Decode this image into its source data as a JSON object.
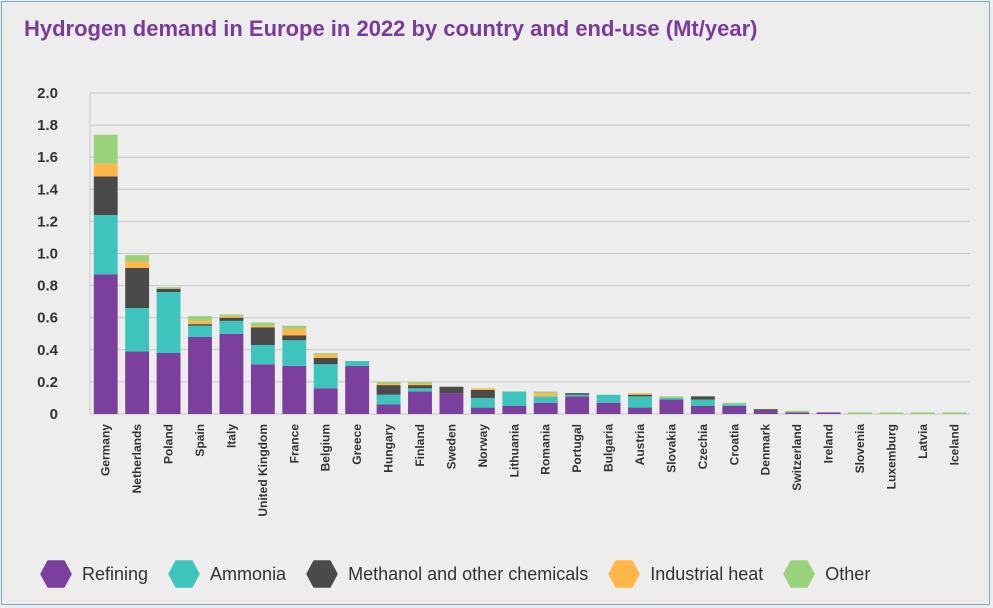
{
  "chart_data": {
    "type": "bar",
    "stacked": true,
    "title": "Hydrogen demand in Europe in 2022 by country and end-use (Mt/year)",
    "xlabel": "",
    "ylabel": "",
    "ylim": [
      0,
      2.0
    ],
    "yticks": [
      0,
      0.2,
      0.4,
      0.6,
      0.8,
      1.0,
      1.2,
      1.4,
      1.6,
      1.8,
      2.0
    ],
    "ytick_labels": [
      "0",
      "0.2",
      "0.4",
      "0.6",
      "0.8",
      "1.0",
      "1.2",
      "1.4",
      "1.6",
      "1.8",
      "2.0"
    ],
    "grid": true,
    "legend_position": "bottom",
    "categories": [
      "Germany",
      "Netherlands",
      "Poland",
      "Spain",
      "Italy",
      "United Kingdom",
      "France",
      "Belgium",
      "Greece",
      "Hungary",
      "Finland",
      "Sweden",
      "Norway",
      "Lithuania",
      "Romania",
      "Portugal",
      "Bulgaria",
      "Austria",
      "Slovakia",
      "Czechia",
      "Croatia",
      "Denmark",
      "Switzerland",
      "Ireland",
      "Slovenia",
      "Luxemburg",
      "Latvia",
      "Iceland"
    ],
    "series": [
      {
        "name": "Refining",
        "color": "#7b3f9e",
        "values": [
          0.87,
          0.39,
          0.38,
          0.48,
          0.5,
          0.31,
          0.3,
          0.16,
          0.3,
          0.06,
          0.14,
          0.13,
          0.04,
          0.05,
          0.07,
          0.11,
          0.07,
          0.04,
          0.09,
          0.05,
          0.05,
          0.02,
          0.01,
          0.01,
          0.0,
          0.0,
          0.0,
          0.0
        ]
      },
      {
        "name": "Ammonia",
        "color": "#3ec4bd",
        "values": [
          0.37,
          0.27,
          0.38,
          0.07,
          0.08,
          0.12,
          0.16,
          0.15,
          0.03,
          0.06,
          0.02,
          0.0,
          0.06,
          0.09,
          0.04,
          0.01,
          0.05,
          0.07,
          0.01,
          0.04,
          0.01,
          0.0,
          0.0,
          0.0,
          0.0,
          0.0,
          0.0,
          0.0
        ]
      },
      {
        "name": "Methanol and other chemicals",
        "color": "#4a4a4a",
        "values": [
          0.24,
          0.25,
          0.02,
          0.01,
          0.02,
          0.11,
          0.03,
          0.04,
          0.0,
          0.06,
          0.02,
          0.04,
          0.05,
          0.0,
          0.0,
          0.01,
          0.0,
          0.01,
          0.0,
          0.02,
          0.0,
          0.01,
          0.0,
          0.0,
          0.0,
          0.0,
          0.0,
          0.0
        ]
      },
      {
        "name": "Industrial heat",
        "color": "#ffb74a",
        "values": [
          0.08,
          0.04,
          0.0,
          0.02,
          0.01,
          0.01,
          0.04,
          0.02,
          0.0,
          0.01,
          0.01,
          0.0,
          0.01,
          0.0,
          0.02,
          0.0,
          0.0,
          0.01,
          0.0,
          0.0,
          0.0,
          0.0,
          0.0,
          0.0,
          0.0,
          0.0,
          0.0,
          0.0
        ]
      },
      {
        "name": "Other",
        "color": "#9ad27c",
        "values": [
          0.18,
          0.04,
          0.01,
          0.03,
          0.01,
          0.02,
          0.02,
          0.01,
          0.0,
          0.01,
          0.01,
          0.0,
          0.0,
          0.0,
          0.01,
          0.0,
          0.0,
          0.0,
          0.01,
          0.0,
          0.01,
          0.0,
          0.01,
          0.0,
          0.01,
          0.01,
          0.01,
          0.01
        ]
      }
    ]
  }
}
